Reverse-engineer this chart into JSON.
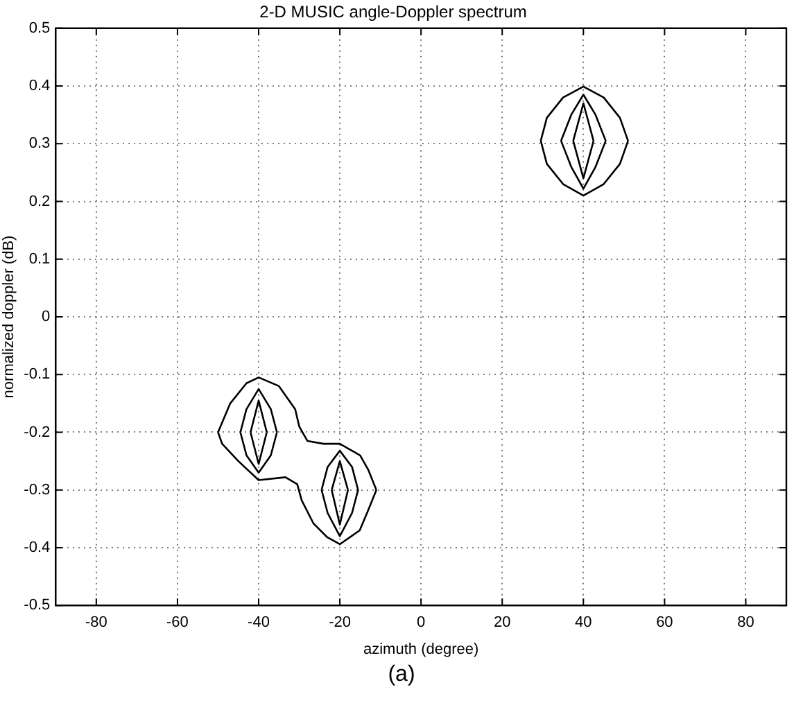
{
  "chart_data": {
    "type": "line",
    "title": "2-D MUSIC angle-Doppler spectrum",
    "xlabel": "azimuth (degree)",
    "ylabel": "normalized doppler (dB)",
    "annotations": [
      "(a)"
    ],
    "xlim": [
      -90,
      90
    ],
    "xticks": [
      -80,
      -60,
      -40,
      -20,
      0,
      20,
      40,
      60,
      80
    ],
    "ylim": [
      -0.5,
      0.5
    ],
    "yticks": [
      -0.5,
      -0.4,
      -0.3,
      -0.2,
      -0.1,
      0,
      0.1,
      0.2,
      0.3,
      0.4,
      0.5
    ],
    "grid": true,
    "line_style": "solid",
    "marker": "none",
    "series": [
      {
        "color": "#000000",
        "x": [
          29.5,
          31,
          35,
          40,
          45,
          49,
          51
        ],
        "values": [
          0.305,
          0.345,
          0.38,
          0.399,
          0.38,
          0.345,
          0.305
        ]
      },
      {
        "color": "#000000",
        "x": [
          29.5,
          31,
          35,
          40,
          45,
          49,
          51
        ],
        "values": [
          0.305,
          0.265,
          0.23,
          0.21,
          0.23,
          0.265,
          0.305
        ]
      },
      {
        "color": "#000000",
        "x": [
          34.5,
          37,
          40,
          43,
          45.5
        ],
        "values": [
          0.305,
          0.35,
          0.385,
          0.35,
          0.305
        ]
      },
      {
        "color": "#000000",
        "x": [
          34.5,
          37,
          40,
          43,
          45.5
        ],
        "values": [
          0.305,
          0.26,
          0.222,
          0.26,
          0.305
        ]
      },
      {
        "color": "#000000",
        "x": [
          37.5,
          40,
          42.5
        ],
        "values": [
          0.305,
          0.37,
          0.305
        ]
      },
      {
        "color": "#000000",
        "x": [
          37.5,
          40,
          42.5
        ],
        "values": [
          0.305,
          0.24,
          0.305
        ]
      },
      {
        "color": "#000000",
        "x": [
          -50,
          -47,
          -43,
          -40,
          -35,
          -31,
          -30,
          -28,
          -24,
          -20,
          -15,
          -13,
          -11
        ],
        "values": [
          -0.2,
          -0.15,
          -0.115,
          -0.105,
          -0.12,
          -0.16,
          -0.19,
          -0.215,
          -0.22,
          -0.22,
          -0.24,
          -0.265,
          -0.3
        ]
      },
      {
        "color": "#000000",
        "x": [
          -50,
          -49,
          -45,
          -40,
          -33.4,
          -30.5,
          -29.4,
          -26.5,
          -23.1,
          -20,
          -15.1,
          -13,
          -11
        ],
        "values": [
          -0.2,
          -0.22,
          -0.25,
          -0.283,
          -0.278,
          -0.29,
          -0.318,
          -0.358,
          -0.382,
          -0.394,
          -0.37,
          -0.335,
          -0.3
        ]
      },
      {
        "color": "#000000",
        "x": [
          -44.5,
          -43,
          -40,
          -37,
          -35.5
        ],
        "values": [
          -0.2,
          -0.16,
          -0.125,
          -0.16,
          -0.2
        ]
      },
      {
        "color": "#000000",
        "x": [
          -44.5,
          -43,
          -40,
          -37,
          -35.5
        ],
        "values": [
          -0.2,
          -0.24,
          -0.27,
          -0.24,
          -0.2
        ]
      },
      {
        "color": "#000000",
        "x": [
          -42,
          -40,
          -38
        ],
        "values": [
          -0.2,
          -0.145,
          -0.2
        ]
      },
      {
        "color": "#000000",
        "x": [
          -42,
          -40,
          -38
        ],
        "values": [
          -0.2,
          -0.255,
          -0.2
        ]
      },
      {
        "color": "#000000",
        "x": [
          -24.5,
          -23,
          -20,
          -17,
          -15.5
        ],
        "values": [
          -0.3,
          -0.26,
          -0.232,
          -0.26,
          -0.3
        ]
      },
      {
        "color": "#000000",
        "x": [
          -24.5,
          -23,
          -20,
          -17,
          -15.5
        ],
        "values": [
          -0.3,
          -0.34,
          -0.38,
          -0.34,
          -0.3
        ]
      },
      {
        "color": "#000000",
        "x": [
          -22,
          -20,
          -18
        ],
        "values": [
          -0.3,
          -0.25,
          -0.3
        ]
      },
      {
        "color": "#000000",
        "x": [
          -22,
          -20,
          -18
        ],
        "values": [
          -0.3,
          -0.36,
          -0.3
        ]
      }
    ]
  }
}
